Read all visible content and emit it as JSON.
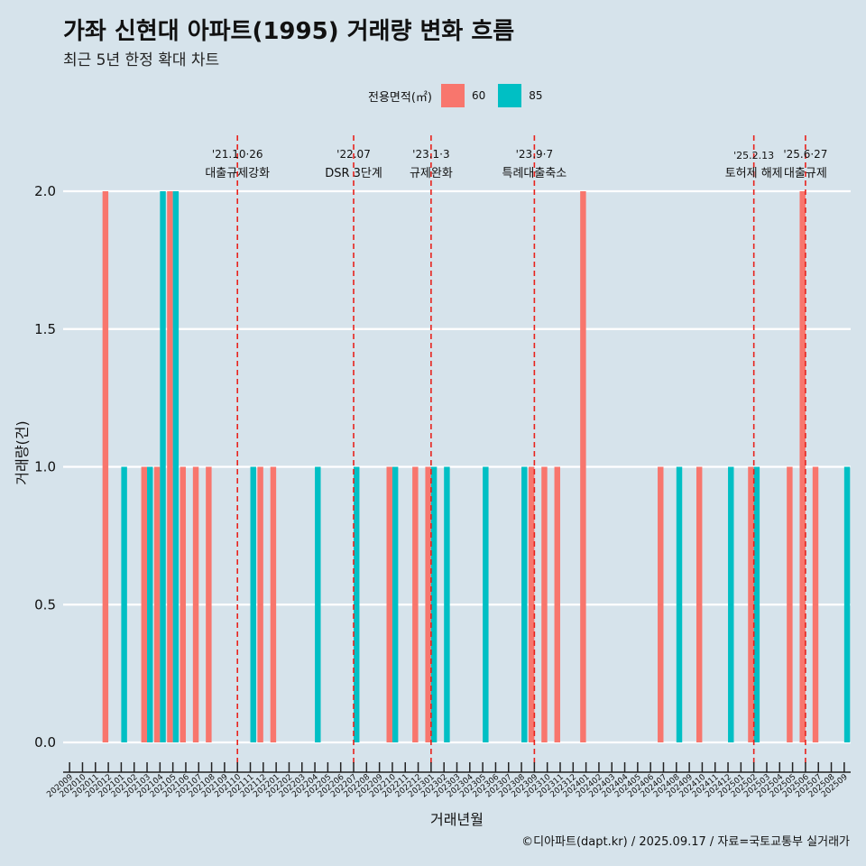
{
  "title": "가좌 신현대 아파트(1995) 거래량 변화 흐름",
  "subtitle": "최근 5년 한정 확대 차트",
  "caption": "©디아파트(dapt.kr) / 2025.09.17 / 자료=국토교통부 실거래가",
  "legend": {
    "title": "전용면적(㎡)",
    "items": [
      {
        "label": "60",
        "color": "#f8766d"
      },
      {
        "label": "85",
        "color": "#00bfc4"
      }
    ]
  },
  "chart_data": {
    "type": "bar",
    "xlabel": "거래년월",
    "ylabel": "거래량(건)",
    "ylim": [
      0,
      2
    ],
    "yticks": [
      "0.0",
      "0.5",
      "1.0",
      "1.5",
      "2.0"
    ],
    "grid": true,
    "legend_position": "top",
    "categories": [
      "202009",
      "202010",
      "202011",
      "202012",
      "202101",
      "202102",
      "202103",
      "202104",
      "202105",
      "202106",
      "202107",
      "202108",
      "202109",
      "202110",
      "202111",
      "202112",
      "202201",
      "202202",
      "202203",
      "202204",
      "202205",
      "202206",
      "202207",
      "202208",
      "202209",
      "202210",
      "202211",
      "202212",
      "202301",
      "202302",
      "202303",
      "202304",
      "202305",
      "202306",
      "202307",
      "202308",
      "202309",
      "202310",
      "202311",
      "202312",
      "202401",
      "202402",
      "202403",
      "202404",
      "202405",
      "202406",
      "202407",
      "202408",
      "202409",
      "202410",
      "202411",
      "202412",
      "202501",
      "202502",
      "202503",
      "202504",
      "202505",
      "202506",
      "202507",
      "202508",
      "202509"
    ],
    "series": [
      {
        "name": "60",
        "color": "#f8766d",
        "values": [
          0,
          0,
          0,
          2,
          0,
          0,
          1,
          1,
          2,
          1,
          1,
          1,
          0,
          0,
          0,
          1,
          1,
          0,
          0,
          0,
          0,
          0,
          0,
          0,
          0,
          1,
          0,
          1,
          1,
          0,
          0,
          0,
          0,
          0,
          0,
          0,
          1,
          1,
          1,
          0,
          2,
          0,
          0,
          0,
          0,
          0,
          1,
          0,
          0,
          1,
          0,
          0,
          0,
          1,
          0,
          0,
          1,
          2,
          1,
          0,
          0
        ]
      },
      {
        "name": "85",
        "color": "#00bfc4",
        "values": [
          0,
          0,
          0,
          0,
          1,
          0,
          1,
          2,
          2,
          0,
          0,
          0,
          0,
          0,
          1,
          0,
          0,
          0,
          0,
          1,
          0,
          0,
          1,
          0,
          0,
          1,
          0,
          0,
          1,
          1,
          0,
          0,
          1,
          0,
          0,
          1,
          0,
          0,
          0,
          0,
          0,
          0,
          0,
          0,
          0,
          0,
          0,
          1,
          0,
          0,
          0,
          1,
          0,
          1,
          0,
          0,
          0,
          0,
          0,
          0,
          1
        ]
      }
    ],
    "annotations": [
      {
        "category": "202110",
        "date": "'21.10·26",
        "label": "대출규제강화"
      },
      {
        "category": "202207",
        "date": "'22.07",
        "label": "DSR 3단계"
      },
      {
        "category": "202301",
        "date": "'23.1·3",
        "label": "규제완화"
      },
      {
        "category": "202309",
        "date": "'23.9·7",
        "label": "특례대출축소"
      },
      {
        "category": "202502",
        "date": "'25.2.13",
        "label": "토허제 해제"
      },
      {
        "category": "202506",
        "date": "'25.6·27",
        "label": "대출규제"
      }
    ]
  }
}
